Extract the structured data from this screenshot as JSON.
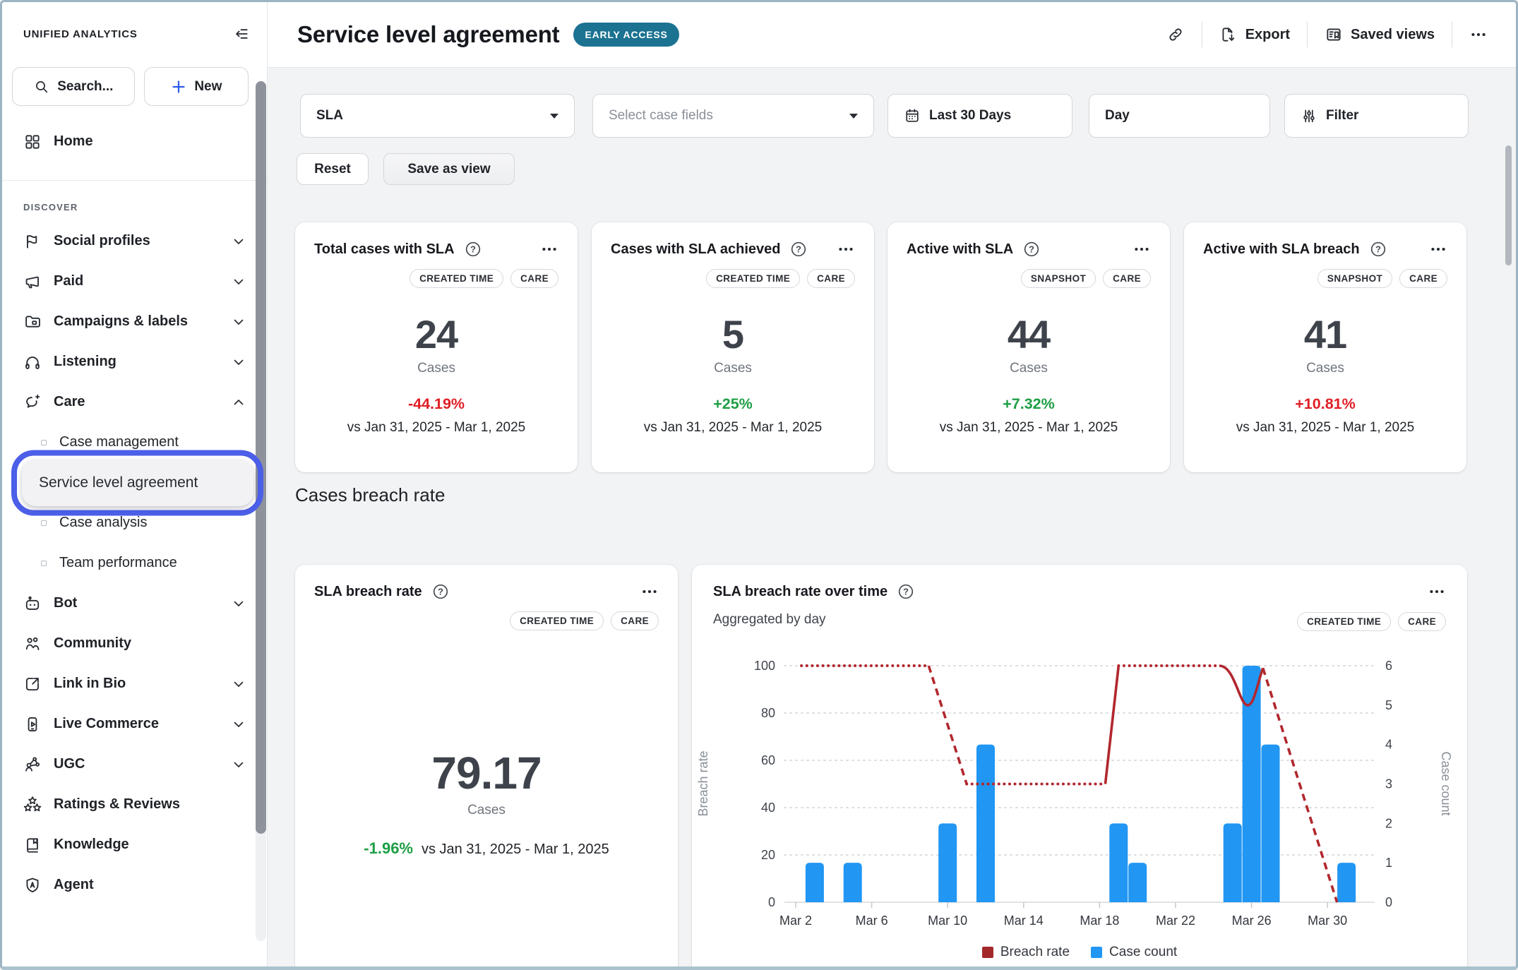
{
  "sidebar": {
    "brand": "UNIFIED ANALYTICS",
    "collapse_icon": "collapse-sidebar-icon",
    "search": {
      "label": "Search...",
      "icon": "magnifier-icon"
    },
    "new_button": {
      "label": "New",
      "icon": "plus-icon"
    },
    "home": {
      "label": "Home",
      "icon": "home-grid-icon"
    },
    "section": "DISCOVER",
    "items": [
      {
        "label": "Social profiles",
        "icon": "flag-icon",
        "chevron": "down"
      },
      {
        "label": "Paid",
        "icon": "megaphone-icon",
        "chevron": "down"
      },
      {
        "label": "Campaigns & labels",
        "icon": "folder-tag-icon",
        "chevron": "down"
      },
      {
        "label": "Listening",
        "icon": "headphones-icon",
        "chevron": "down"
      },
      {
        "label": "Care",
        "icon": "care-bubble-icon",
        "chevron": "up",
        "children": [
          {
            "label": "Case management"
          },
          {
            "label": "Service level agreement",
            "active": true
          },
          {
            "label": "Case analysis"
          },
          {
            "label": "Team performance"
          }
        ]
      },
      {
        "label": "Bot",
        "icon": "bot-icon",
        "chevron": "down"
      },
      {
        "label": "Community",
        "icon": "people-icon"
      },
      {
        "label": "Link in Bio",
        "icon": "link-in-bio-icon",
        "chevron": "down"
      },
      {
        "label": "Live Commerce",
        "icon": "live-commerce-icon",
        "chevron": "down"
      },
      {
        "label": "UGC",
        "icon": "ugc-icon",
        "chevron": "down"
      },
      {
        "label": "Ratings & Reviews",
        "icon": "stars-icon"
      },
      {
        "label": "Knowledge",
        "icon": "book-icon"
      },
      {
        "label": "Agent",
        "icon": "shield-icon"
      }
    ]
  },
  "header": {
    "title": "Service level agreement",
    "badge": "EARLY ACCESS",
    "actions": {
      "link_icon": "link-icon",
      "export": "Export",
      "saved_views": "Saved views",
      "more_icon": "ellipsis-icon"
    }
  },
  "filters": {
    "sla": "SLA",
    "case_fields_placeholder": "Select case fields",
    "date_range": "Last 30 Days",
    "granularity": "Day",
    "filter": "Filter",
    "reset": "Reset",
    "save_as_view": "Save as view"
  },
  "metric_cards": [
    {
      "title": "Total cases with SLA",
      "tags": [
        "CREATED TIME",
        "CARE"
      ],
      "value": "24",
      "unit": "Cases",
      "change": "-44.19%",
      "change_color": "#E01E25",
      "compare": "vs Jan 31, 2025 - Mar 1, 2025"
    },
    {
      "title": "Cases with SLA achieved",
      "tags": [
        "CREATED TIME",
        "CARE"
      ],
      "value": "5",
      "unit": "Cases",
      "change": "+25%",
      "change_color": "#1E9E44",
      "compare": "vs Jan 31, 2025 - Mar 1, 2025"
    },
    {
      "title": "Active with SLA",
      "tags": [
        "SNAPSHOT",
        "CARE"
      ],
      "value": "44",
      "unit": "Cases",
      "change": "+7.32%",
      "change_color": "#1E9E44",
      "compare": "vs Jan 31, 2025 - Mar 1, 2025"
    },
    {
      "title": "Active with SLA breach",
      "tags": [
        "SNAPSHOT",
        "CARE"
      ],
      "value": "41",
      "unit": "Cases",
      "change": "+10.81%",
      "change_color": "#E01E25",
      "compare": "vs Jan 31, 2025 - Mar 1, 2025"
    }
  ],
  "section_title": "Cases breach rate",
  "breach_rate_card": {
    "title": "SLA breach rate",
    "tags": [
      "CREATED TIME",
      "CARE"
    ],
    "value": "79.17",
    "unit": "Cases",
    "change": "-1.96%",
    "change_color": "#1E9E44",
    "compare": "vs Jan 31, 2025 - Mar 1, 2025"
  },
  "chart_card": {
    "title": "SLA breach rate over time",
    "subtitle": "Aggregated by day",
    "tags": [
      "CREATED TIME",
      "CARE"
    ]
  },
  "chart_data": {
    "type": "bar+line dual-axis",
    "title": "SLA breach rate over time",
    "x_axis": {
      "tick_labels": [
        "Mar 2",
        "Mar 6",
        "Mar 10",
        "Mar 14",
        "Mar 18",
        "Mar 22",
        "Mar 26",
        "Mar 30"
      ],
      "tick_days": [
        2,
        6,
        10,
        14,
        18,
        22,
        26,
        30
      ]
    },
    "left_axis": {
      "title": "Breach rate",
      "ticks": [
        0,
        20,
        40,
        60,
        80,
        100
      ],
      "range": [
        0,
        100
      ]
    },
    "right_axis": {
      "title": "Case count",
      "ticks": [
        0,
        1,
        2,
        3,
        4,
        5,
        6
      ],
      "range": [
        0,
        6
      ]
    },
    "bars": {
      "name": "Case count",
      "color": "#2196F3",
      "points": [
        {
          "day": 3,
          "count": 1
        },
        {
          "day": 5,
          "count": 1
        },
        {
          "day": 10,
          "count": 2
        },
        {
          "day": 12,
          "count": 4
        },
        {
          "day": 19,
          "count": 2
        },
        {
          "day": 20,
          "count": 1
        },
        {
          "day": 25,
          "count": 2
        },
        {
          "day": 26,
          "count": 6
        },
        {
          "day": 27,
          "count": 4
        },
        {
          "day": 31,
          "count": 1
        }
      ]
    },
    "line": {
      "name": "Breach rate",
      "color": "#B2272E",
      "segments": [
        {
          "style": "dotted",
          "points": [
            [
              2.3,
              100
            ],
            [
              9,
              100
            ]
          ]
        },
        {
          "style": "dashed",
          "points": [
            [
              9,
              100
            ],
            [
              11,
              50
            ]
          ]
        },
        {
          "style": "dotted",
          "points": [
            [
              11,
              50
            ],
            [
              18.3,
              50
            ]
          ]
        },
        {
          "style": "solid",
          "points": [
            [
              18.3,
              50
            ],
            [
              19,
              100
            ]
          ]
        },
        {
          "style": "dotted",
          "points": [
            [
              19,
              100
            ],
            [
              24.3,
              100
            ]
          ]
        },
        {
          "style": "solid",
          "curve": true,
          "points": [
            [
              24.3,
              100
            ],
            [
              25.8,
              83.3
            ],
            [
              26.6,
              99
            ]
          ]
        },
        {
          "style": "dashed",
          "points": [
            [
              26.6,
              99
            ],
            [
              30.5,
              0
            ]
          ]
        }
      ]
    },
    "legend": [
      {
        "label": "Breach rate",
        "color": "#A3282C"
      },
      {
        "label": "Case count",
        "color": "#2196F3"
      }
    ],
    "grid": "horizontal dotted"
  },
  "colors": {
    "accent_blue": "#2196F3",
    "line_red": "#B2272E",
    "badge_teal": "#1B7291",
    "positive_green": "#1E9E44",
    "negative_red": "#E01E25",
    "highlight_ring": "#4C5FE8",
    "content_bg": "#F2F3F4"
  }
}
